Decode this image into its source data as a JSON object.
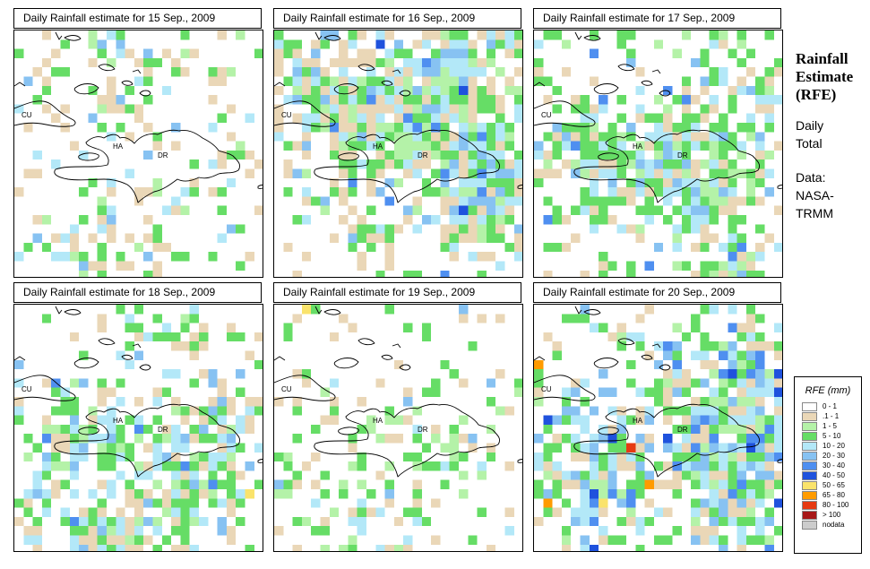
{
  "panels": [
    {
      "title": "Daily Rainfall estimate for  15 Sep., 2009",
      "seed": 15,
      "wet": 0.3,
      "weights": [
        0.45,
        0.08,
        0.3,
        0.13,
        0.04,
        0,
        0,
        0,
        0,
        0,
        0,
        0
      ],
      "hotspot": [
        0.35,
        0.1
      ],
      "south": 0.5
    },
    {
      "title": "Daily Rainfall estimate for  16 Sep., 2009",
      "seed": 16,
      "wet": 0.58,
      "weights": [
        0.3,
        0.05,
        0.35,
        0.2,
        0.07,
        0.02,
        0.005,
        0,
        0,
        0,
        0,
        0
      ],
      "hotspot": [
        0.78,
        0.72
      ],
      "south": 1.2
    },
    {
      "title": "Daily Rainfall estimate for  17 Sep., 2009",
      "seed": 17,
      "wet": 0.5,
      "weights": [
        0.28,
        0.06,
        0.46,
        0.14,
        0.05,
        0.01,
        0,
        0,
        0,
        0,
        0,
        0
      ],
      "hotspot": [
        0.6,
        0.55
      ],
      "south": 1.3
    },
    {
      "title": "Daily Rainfall estimate for  18 Sep., 2009",
      "seed": 18,
      "wet": 0.42,
      "weights": [
        0.3,
        0.05,
        0.4,
        0.17,
        0.06,
        0.015,
        0,
        0.003,
        0,
        0,
        0,
        0
      ],
      "hotspot": [
        0.3,
        0.92
      ],
      "south": 1.4
    },
    {
      "title": "Daily Rainfall estimate for  19 Sep., 2009",
      "seed": 19,
      "wet": 0.22,
      "weights": [
        0.4,
        0.16,
        0.34,
        0.07,
        0.02,
        0,
        0,
        0.002,
        0,
        0,
        0,
        0
      ],
      "hotspot": [
        0.5,
        0.55
      ],
      "south": 0.6
    },
    {
      "title": "Daily Rainfall estimate for  20 Sep., 2009",
      "seed": 20,
      "wet": 0.55,
      "weights": [
        0.25,
        0.04,
        0.28,
        0.2,
        0.15,
        0.04,
        0.02,
        0.006,
        0.006,
        0.003,
        0,
        0
      ],
      "hotspot": [
        0.8,
        0.6
      ],
      "south": 1.1
    }
  ],
  "map_labels": {
    "cuba": "CU",
    "haiti": "HA",
    "dominican_republic": "DR"
  },
  "sidebar": {
    "title_lines": [
      "Rainfall",
      "Estimate",
      "(RFE)"
    ],
    "period_lines": [
      "Daily",
      "Total"
    ],
    "data_lines": [
      "Data:",
      "NASA-",
      "TRMM"
    ]
  },
  "legend": {
    "title": "RFE (mm)",
    "entries": [
      {
        "label": "0 - 1",
        "color": "#ffffff"
      },
      {
        "label": ".1 - 1",
        "color": "#ead7b7"
      },
      {
        "label": "1 - 5",
        "color": "#b4f2a8"
      },
      {
        "label": "5 - 10",
        "color": "#66dd66"
      },
      {
        "label": "10 - 20",
        "color": "#b3e8f8"
      },
      {
        "label": "20 - 30",
        "color": "#87c2f2"
      },
      {
        "label": "30 - 40",
        "color": "#4f8ff0"
      },
      {
        "label": "40 - 50",
        "color": "#1f52dd"
      },
      {
        "label": "50 - 65",
        "color": "#fae36b"
      },
      {
        "label": "65 - 80",
        "color": "#ff9b00"
      },
      {
        "label": "80 - 100",
        "color": "#e63a12"
      },
      {
        "label": "> 100",
        "color": "#a71818"
      },
      {
        "label": "nodata",
        "color": "#cccccc"
      }
    ]
  }
}
